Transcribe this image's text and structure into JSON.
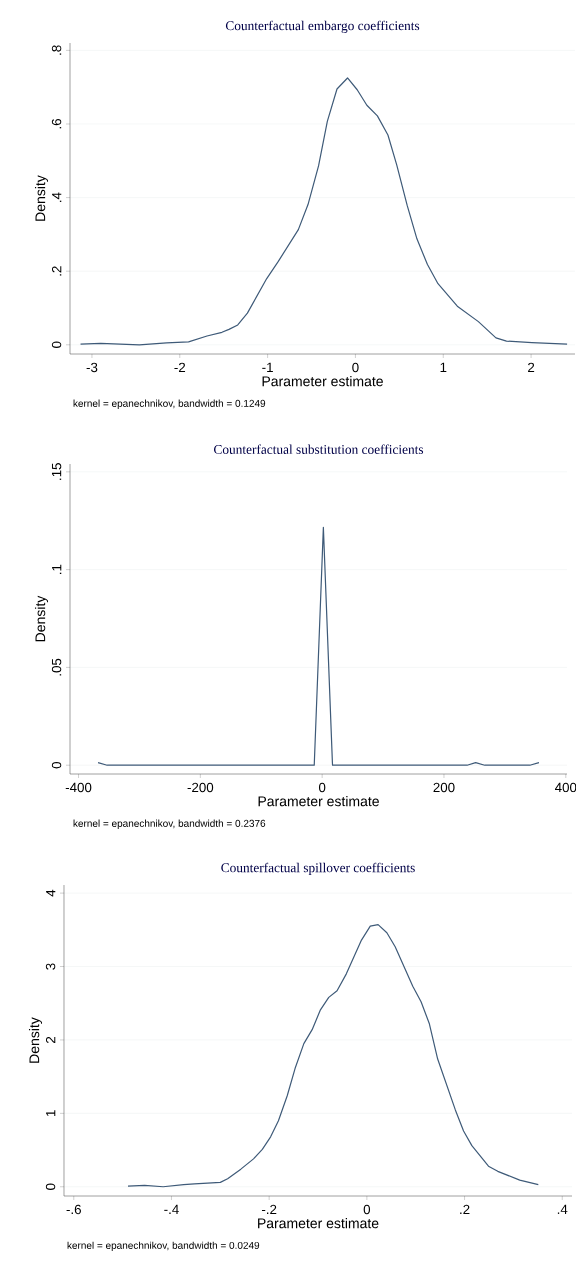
{
  "chart_data": [
    {
      "type": "line",
      "title": "Counterfactual embargo coefficients",
      "xlabel": "Parameter estimate",
      "ylabel": "Density",
      "annotations": [
        "kernel = epanechnikov, bandwidth = 0.1249"
      ],
      "color": "#3e5a78",
      "grid": "y",
      "x": [
        -3.13,
        -2.9,
        -2.46,
        -2.15,
        -1.9,
        -1.69,
        -1.52,
        -1.44,
        -1.34,
        -1.23,
        -1.01,
        -0.88,
        -0.65,
        -0.54,
        -0.42,
        -0.32,
        -0.21,
        -0.09,
        0.02,
        0.13,
        0.25,
        0.37,
        0.47,
        0.59,
        0.7,
        0.82,
        0.94,
        1.16,
        1.4,
        1.6,
        1.72,
        2.01,
        2.41
      ],
      "values": [
        0.002,
        0.004,
        0.0,
        0.005,
        0.008,
        0.024,
        0.034,
        0.042,
        0.054,
        0.086,
        0.18,
        0.226,
        0.313,
        0.381,
        0.486,
        0.607,
        0.695,
        0.725,
        0.693,
        0.651,
        0.622,
        0.57,
        0.489,
        0.378,
        0.288,
        0.218,
        0.166,
        0.105,
        0.063,
        0.019,
        0.01,
        0.006,
        0.002
      ],
      "xlim": [
        -3.25,
        2.5
      ],
      "ylim": [
        -0.025,
        0.82
      ],
      "xticks": [
        -3,
        -2,
        -1,
        0,
        1,
        2
      ],
      "yticks": [
        0,
        {
          "value": 0.2,
          "label": ".2"
        },
        {
          "value": 0.4,
          "label": ".4"
        },
        {
          "value": 0.6,
          "label": ".6"
        },
        {
          "value": 0.8,
          "label": ".8"
        }
      ]
    },
    {
      "type": "line",
      "title": "Counterfactual substitution coefficients",
      "xlabel": "Parameter estimate",
      "ylabel": "Density",
      "annotations": [
        "kernel = epanechnikov, bandwidth = 0.2376"
      ],
      "color": "#3e5a78",
      "grid": "y",
      "x": [
        -368,
        -353,
        -13,
        2,
        17,
        238,
        252,
        267,
        341,
        356
      ],
      "values": [
        0.0013,
        0.0,
        0.0,
        0.1216,
        0.0,
        0.0,
        0.0013,
        0.0,
        0.0,
        0.0013
      ],
      "xlim": [
        -414,
        402
      ],
      "ylim": [
        -0.0045,
        0.154
      ],
      "xticks": [
        -400,
        -200,
        0,
        200,
        400
      ],
      "yticks": [
        0,
        {
          "value": 0.05,
          "label": ".05"
        },
        {
          "value": 0.1,
          "label": ".1"
        },
        {
          "value": 0.15,
          "label": ".15"
        }
      ]
    },
    {
      "type": "line",
      "title": "Counterfactual spillover coefficients",
      "xlabel": "Parameter estimate",
      "ylabel": "Density",
      "annotations": [
        "kernel = epanechnikov, bandwidth = 0.0249"
      ],
      "color": "#3e5a78",
      "grid": "y",
      "x": [
        -0.489,
        -0.455,
        -0.417,
        -0.375,
        -0.353,
        -0.326,
        -0.3,
        -0.285,
        -0.258,
        -0.232,
        -0.214,
        -0.197,
        -0.181,
        -0.163,
        -0.147,
        -0.129,
        -0.112,
        -0.095,
        -0.078,
        -0.061,
        -0.042,
        -0.011,
        0.007,
        0.023,
        0.041,
        0.058,
        0.094,
        0.111,
        0.128,
        0.145,
        0.181,
        0.198,
        0.215,
        0.249,
        0.268,
        0.313,
        0.351
      ],
      "values": [
        0.01,
        0.02,
        0.0,
        0.03,
        0.04,
        0.05,
        0.06,
        0.11,
        0.24,
        0.38,
        0.51,
        0.68,
        0.9,
        1.24,
        1.61,
        1.95,
        2.14,
        2.41,
        2.58,
        2.67,
        2.9,
        3.36,
        3.55,
        3.57,
        3.46,
        3.27,
        2.73,
        2.52,
        2.22,
        1.74,
        1.05,
        0.76,
        0.56,
        0.28,
        0.21,
        0.09,
        0.03
      ],
      "xlim": [
        -0.62,
        0.42
      ],
      "ylim": [
        -0.126,
        4.11
      ],
      "xticks": [
        {
          "value": -0.6,
          "label": "-.6"
        },
        {
          "value": -0.4,
          "label": "-.4"
        },
        {
          "value": -0.2,
          "label": "-.2"
        },
        0,
        {
          "value": 0.2,
          "label": ".2"
        },
        {
          "value": 0.4,
          "label": ".4"
        }
      ],
      "yticks": [
        0,
        1,
        2,
        3,
        4
      ]
    }
  ]
}
